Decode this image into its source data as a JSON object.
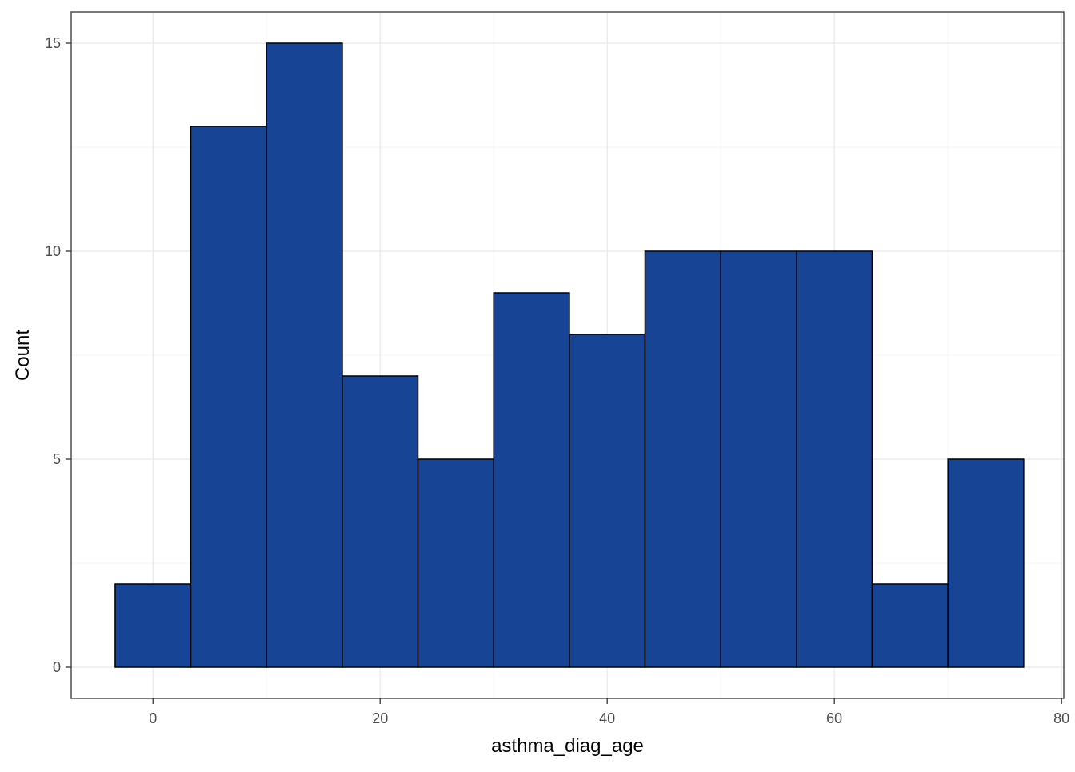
{
  "chart_data": {
    "type": "bar",
    "subtype": "histogram",
    "title": "",
    "xlabel": "asthma_diag_age",
    "ylabel": "Count",
    "xlim": [
      -7.2,
      80.2
    ],
    "ylim": [
      -0.75,
      15.75
    ],
    "x_ticks": [
      0,
      20,
      40,
      60,
      80
    ],
    "y_ticks": [
      0,
      5,
      10,
      15
    ],
    "grid": true,
    "legend": "none",
    "bins": [
      {
        "x_start": -3.33,
        "x_end": 3.33,
        "count": 2
      },
      {
        "x_start": 3.33,
        "x_end": 10.0,
        "count": 13
      },
      {
        "x_start": 10.0,
        "x_end": 16.67,
        "count": 15
      },
      {
        "x_start": 16.67,
        "x_end": 23.33,
        "count": 7
      },
      {
        "x_start": 23.33,
        "x_end": 30.0,
        "count": 5
      },
      {
        "x_start": 30.0,
        "x_end": 36.67,
        "count": 9
      },
      {
        "x_start": 36.67,
        "x_end": 43.33,
        "count": 8
      },
      {
        "x_start": 43.33,
        "x_end": 50.0,
        "count": 10
      },
      {
        "x_start": 50.0,
        "x_end": 56.67,
        "count": 10
      },
      {
        "x_start": 56.67,
        "x_end": 63.33,
        "count": 10
      },
      {
        "x_start": 63.33,
        "x_end": 70.0,
        "count": 2
      },
      {
        "x_start": 70.0,
        "x_end": 76.67,
        "count": 5
      }
    ],
    "colors": {
      "bar_fill": "#184496",
      "bar_outline": "#000000",
      "panel_border": "#333333",
      "grid_major": "#ebebeb",
      "grid_minor": "#f5f5f5"
    }
  }
}
